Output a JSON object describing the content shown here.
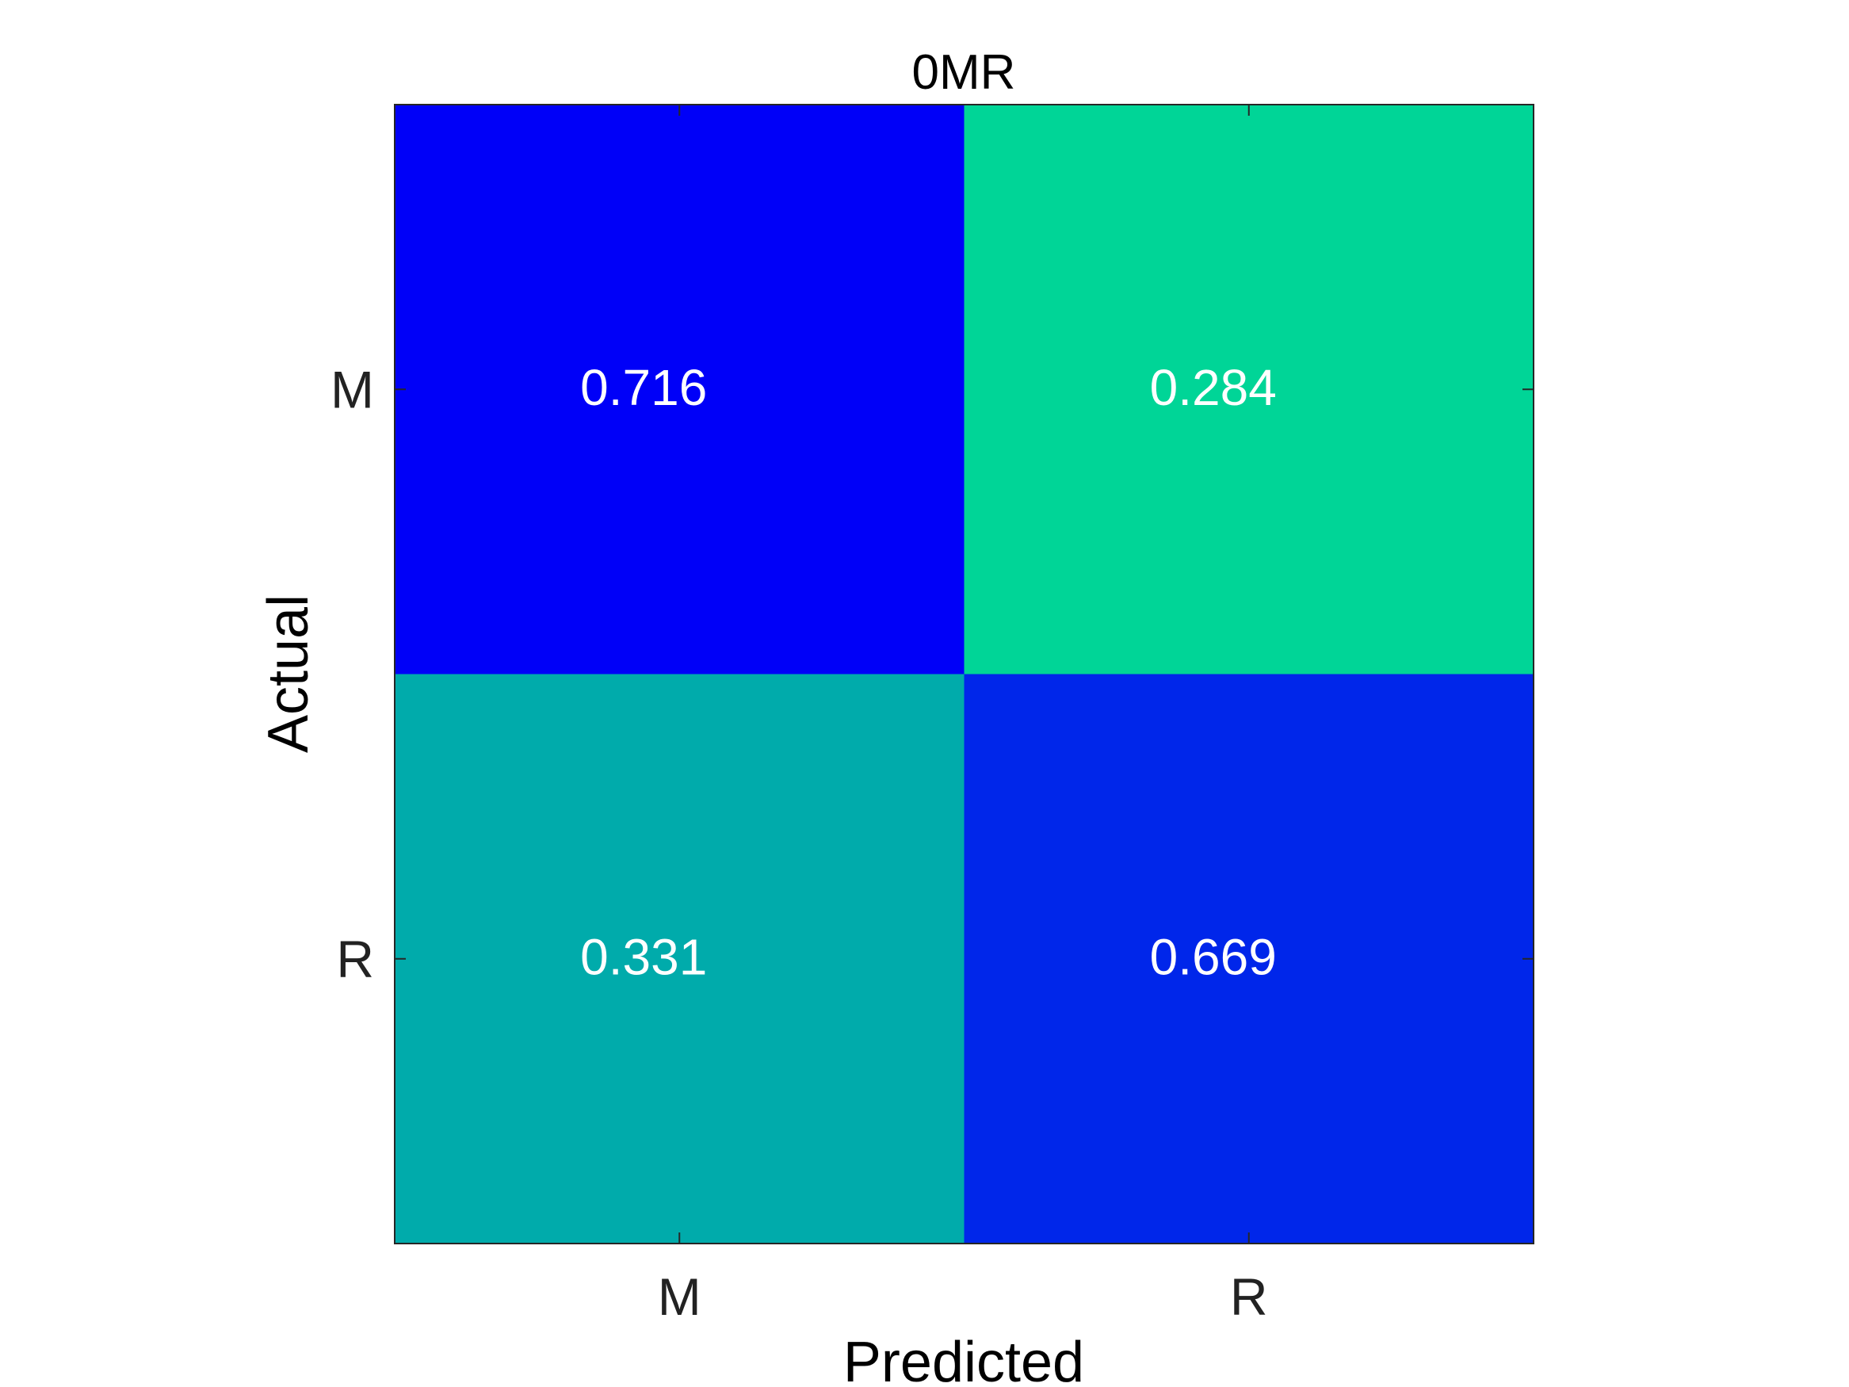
{
  "chart_data": {
    "type": "heatmap",
    "title": "0MR",
    "xlabel": "Predicted",
    "ylabel": "Actual",
    "x_categories": [
      "M",
      "R"
    ],
    "y_categories": [
      "M",
      "R"
    ],
    "cells": [
      {
        "actual": "M",
        "predicted": "M",
        "value": 0.716,
        "label": "0.716",
        "color": "#0000f8"
      },
      {
        "actual": "M",
        "predicted": "R",
        "value": 0.284,
        "label": "0.284",
        "color": "#00d597"
      },
      {
        "actual": "R",
        "predicted": "M",
        "value": 0.331,
        "label": "0.331",
        "color": "#00abab"
      },
      {
        "actual": "R",
        "predicted": "R",
        "value": 0.669,
        "label": "0.669",
        "color": "#0026ea"
      }
    ],
    "grid": false,
    "colorbar": false
  }
}
